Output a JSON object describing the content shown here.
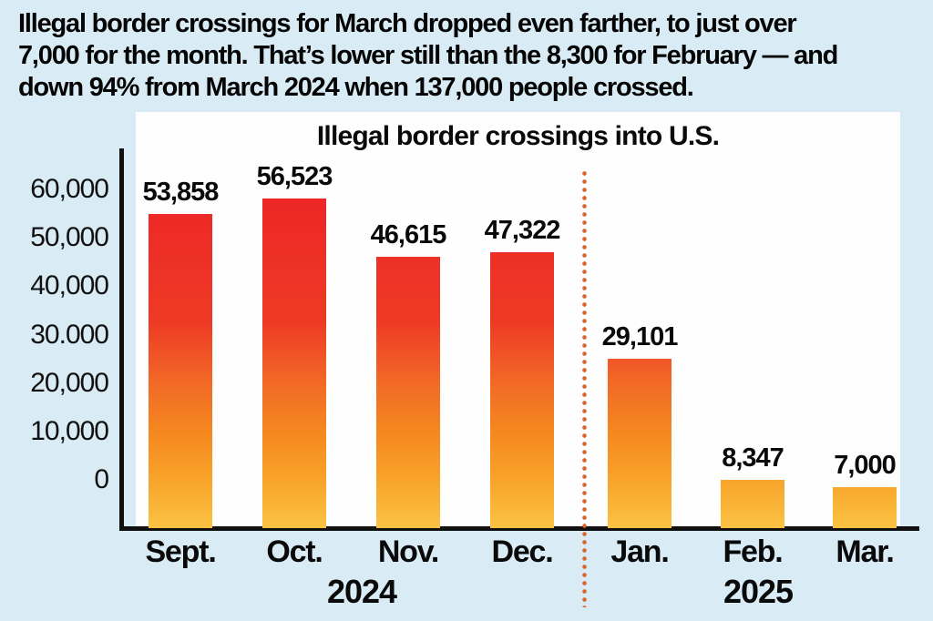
{
  "headline": {
    "lines": [
      "Illegal border crossings for March dropped even farther, to just over",
      "7,000 for the month. That’s lower still than the 8,300 for February — and",
      "down 94% from March 2024 when 137,000 people crossed."
    ]
  },
  "chart_data": {
    "type": "bar",
    "title": "Illegal border crossings into U.S.",
    "categories": [
      "Sept.",
      "Oct.",
      "Nov.",
      "Dec.",
      "Jan.",
      "Feb.",
      "Mar."
    ],
    "values": [
      53858,
      56523,
      46615,
      47322,
      29101,
      8347,
      7000
    ],
    "value_labels": [
      "53,858",
      "56,523",
      "46,615",
      "47,322",
      "29,101",
      "8,347",
      "7,000"
    ],
    "y_ticks": [
      "60,000",
      "50,000",
      "40,000",
      "30.000",
      "20,000",
      "10,000",
      "0"
    ],
    "ylabel": "",
    "xlabel": "",
    "ylim": [
      0,
      60000
    ],
    "grid": "off",
    "legend": "none",
    "year_groups": [
      {
        "label": "2024",
        "months": [
          "Sept.",
          "Oct.",
          "Nov.",
          "Dec."
        ]
      },
      {
        "label": "2025",
        "months": [
          "Jan.",
          "Feb.",
          "Mar."
        ]
      }
    ],
    "divider_between": [
      "Dec.",
      "Jan."
    ],
    "colors": {
      "background": "#d9ecf5",
      "panel": "#fefefe",
      "text": "#0a0a0a",
      "axis": "#101010",
      "divider_dots": "#d8662a",
      "bar_gradient": [
        "#ec2027",
        "#ee3a25",
        "#f26b26",
        "#f5891f",
        "#f8a32a",
        "#fbc343"
      ]
    }
  }
}
